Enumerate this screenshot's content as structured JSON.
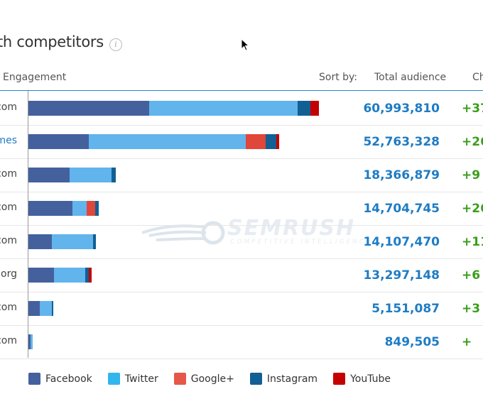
{
  "header": {
    "title": "th competitors",
    "info_icon": "i",
    "engagement_label": "Engagement",
    "sort_by_label": "Sort by:",
    "total_audience_label": "Total audience",
    "change_label": "Ch"
  },
  "watermark": {
    "brand": "SEMRUSH",
    "tagline": "COMPETITIVE INTELLIGENCE"
  },
  "chart_data": {
    "type": "bar",
    "stacked": true,
    "orientation": "horizontal",
    "categories": [
      "com",
      "mes",
      "com",
      "com",
      "com",
      "org",
      "com",
      "com"
    ],
    "series": [
      {
        "name": "Facebook",
        "color": "#44619d",
        "values": [
          170,
          85,
          58,
          62,
          33,
          36,
          16,
          3
        ]
      },
      {
        "name": "Twitter",
        "color": "#62b4ec",
        "values": [
          209,
          221,
          59,
          20,
          58,
          44,
          17,
          3
        ]
      },
      {
        "name": "Google+",
        "color": "#e0463a",
        "values": [
          0,
          28,
          0,
          12,
          0,
          0,
          0,
          0
        ]
      },
      {
        "name": "Instagram",
        "color": "#125f94",
        "values": [
          18,
          15,
          6,
          5,
          4,
          5,
          2,
          0
        ]
      },
      {
        "name": "YouTube",
        "color": "#c40000",
        "values": [
          12,
          4,
          0,
          0,
          0,
          4,
          0,
          0
        ]
      }
    ],
    "legend": "bottom"
  },
  "rows": [
    {
      "label": ".com",
      "audience": "60,993,810",
      "change": "+37",
      "link": false
    },
    {
      "label": "mes",
      "audience": "52,763,328",
      "change": "+26",
      "link": true
    },
    {
      "label": ".com",
      "audience": "18,366,879",
      "change": "+9",
      "link": false
    },
    {
      "label": ".com",
      "audience": "14,704,745",
      "change": "+26",
      "link": false
    },
    {
      "label": ".com",
      "audience": "14,107,470",
      "change": "+11",
      "link": false
    },
    {
      "label": ".org",
      "audience": "13,297,148",
      "change": "+6",
      "link": false
    },
    {
      "label": ".com",
      "audience": "5,151,087",
      "change": "+3",
      "link": false
    },
    {
      "label": ".com",
      "audience": "849,505",
      "change": "+",
      "link": false
    }
  ],
  "legend": [
    {
      "label": "Facebook",
      "color": "#44619d"
    },
    {
      "label": "Twitter",
      "color": "#33b5ee"
    },
    {
      "label": "Google+",
      "color": "#e5574a"
    },
    {
      "label": "Instagram",
      "color": "#125f94"
    },
    {
      "label": "YouTube",
      "color": "#c40000"
    }
  ]
}
